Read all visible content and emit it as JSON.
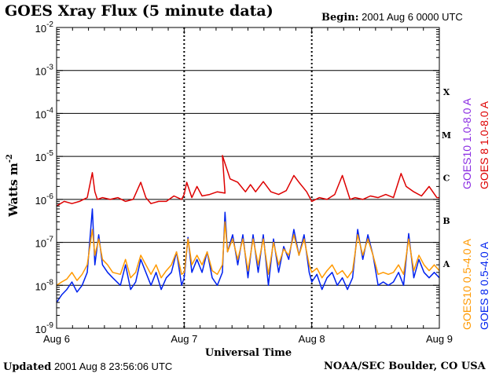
{
  "header": {
    "title": "GOES Xray Flux (5 minute data)",
    "begin_label": "Begin:",
    "begin_value": "2001 Aug 6 0000 UTC"
  },
  "footer": {
    "updated_label": "Updated",
    "updated_value": "2001 Aug  8 23:56:06 UTC",
    "credit": "NOAA/SEC Boulder, CO USA"
  },
  "chart_data": {
    "type": "line",
    "title": "GOES Xray Flux (5 minute data)",
    "xlabel": "Universal Time",
    "ylabel": "Watts m",
    "ylabel_superscript": "-2",
    "x_tick_labels": [
      "Aug 6",
      "Aug 7",
      "Aug 8",
      "Aug 9"
    ],
    "xlim_days": [
      0,
      3
    ],
    "y_scale": "log",
    "ylim": [
      1e-09,
      0.01
    ],
    "y_ticks": [
      {
        "base": "10",
        "exp": "-9"
      },
      {
        "base": "10",
        "exp": "-8"
      },
      {
        "base": "10",
        "exp": "-7"
      },
      {
        "base": "10",
        "exp": "-6"
      },
      {
        "base": "10",
        "exp": "-5"
      },
      {
        "base": "10",
        "exp": "-4"
      },
      {
        "base": "10",
        "exp": "-3"
      },
      {
        "base": "10",
        "exp": "-2"
      }
    ],
    "flare_classes": [
      {
        "label": "A",
        "value": 1e-08
      },
      {
        "label": "B",
        "value": 1e-07
      },
      {
        "label": "C",
        "value": 1e-06
      },
      {
        "label": "M",
        "value": 1e-05
      },
      {
        "label": "X",
        "value": 0.0001
      }
    ],
    "grid": "horizontal lines at each decade from 1e-8 to 1e-3; dashed vertical lines at day boundaries",
    "series": [
      {
        "name": "GOES 8 1.0-8.0 A",
        "color": "#dd0000",
        "band": "long",
        "x": [
          0.0,
          0.06,
          0.12,
          0.18,
          0.24,
          0.28,
          0.3,
          0.32,
          0.36,
          0.42,
          0.48,
          0.54,
          0.6,
          0.66,
          0.7,
          0.74,
          0.8,
          0.86,
          0.92,
          0.98,
          1.0,
          1.02,
          1.06,
          1.1,
          1.14,
          1.2,
          1.26,
          1.32,
          1.3,
          1.36,
          1.42,
          1.48,
          1.52,
          1.56,
          1.62,
          1.68,
          1.74,
          1.8,
          1.86,
          1.9,
          1.96,
          2.0,
          2.06,
          2.12,
          2.18,
          2.24,
          2.3,
          2.34,
          2.4,
          2.46,
          2.52,
          2.58,
          2.64,
          2.7,
          2.74,
          2.8,
          2.86,
          2.92,
          2.98,
          3.0
        ],
        "y": [
          7e-07,
          9e-07,
          8e-07,
          9e-07,
          1.1e-06,
          4.2e-06,
          1.5e-06,
          1e-06,
          1.1e-06,
          1e-06,
          1.1e-06,
          9e-07,
          1e-06,
          2.5e-06,
          1.1e-06,
          8e-07,
          9e-07,
          9e-07,
          1.2e-06,
          1e-06,
          1.3e-06,
          2.5e-06,
          1.1e-06,
          2e-06,
          1.2e-06,
          1.3e-06,
          1.5e-06,
          1.4e-06,
          1.05e-05,
          3e-06,
          2.5e-06,
          1.5e-06,
          2.2e-06,
          1.5e-06,
          2.6e-06,
          1.5e-06,
          1.3e-06,
          1.6e-06,
          3.6e-06,
          2.5e-06,
          1.5e-06,
          9e-07,
          1.1e-06,
          1e-06,
          1.3e-06,
          3.6e-06,
          1e-06,
          1.1e-06,
          1e-06,
          1.2e-06,
          1.1e-06,
          1.3e-06,
          1.1e-06,
          4e-06,
          2e-06,
          1.5e-06,
          1.2e-06,
          2e-06,
          1.1e-06,
          1.1e-06
        ]
      },
      {
        "name": "GOES10 1.0-8.0 A",
        "color": "#8a2be2",
        "band": "long",
        "x": [],
        "y": []
      },
      {
        "name": "GOES 8 0.5-4.0 A",
        "color": "#0022ee",
        "band": "short",
        "x": [
          0.0,
          0.04,
          0.08,
          0.12,
          0.16,
          0.2,
          0.24,
          0.28,
          0.3,
          0.33,
          0.36,
          0.4,
          0.44,
          0.5,
          0.54,
          0.58,
          0.62,
          0.66,
          0.7,
          0.74,
          0.78,
          0.82,
          0.86,
          0.9,
          0.94,
          0.98,
          1.0,
          1.03,
          1.06,
          1.1,
          1.14,
          1.18,
          1.22,
          1.26,
          1.3,
          1.32,
          1.34,
          1.38,
          1.42,
          1.46,
          1.5,
          1.54,
          1.58,
          1.62,
          1.66,
          1.7,
          1.74,
          1.78,
          1.82,
          1.86,
          1.9,
          1.94,
          1.98,
          2.0,
          2.04,
          2.08,
          2.12,
          2.16,
          2.2,
          2.24,
          2.28,
          2.32,
          2.36,
          2.4,
          2.44,
          2.48,
          2.52,
          2.56,
          2.6,
          2.64,
          2.68,
          2.72,
          2.76,
          2.8,
          2.84,
          2.88,
          2.92,
          2.96,
          3.0
        ],
        "y": [
          4e-09,
          6e-09,
          8e-09,
          1.2e-08,
          7e-09,
          1e-08,
          2e-08,
          6e-07,
          3e-08,
          1.5e-07,
          3e-08,
          2e-08,
          1.5e-08,
          1e-08,
          3e-08,
          8e-09,
          1.2e-08,
          4e-08,
          2e-08,
          1e-08,
          2e-08,
          8e-09,
          1.5e-08,
          2e-08,
          6e-08,
          1e-08,
          1.5e-08,
          1.3e-07,
          2e-08,
          4e-08,
          2e-08,
          6e-08,
          1.5e-08,
          1e-08,
          2e-08,
          5e-07,
          6e-08,
          1.5e-07,
          3e-08,
          1.5e-07,
          1.5e-08,
          1.5e-07,
          2e-08,
          1.5e-07,
          1e-08,
          1.2e-07,
          2e-08,
          8e-08,
          4e-08,
          2e-07,
          5e-08,
          1.5e-07,
          2e-08,
          1.2e-08,
          1.8e-08,
          8e-09,
          1.5e-08,
          2e-08,
          1e-08,
          1.5e-08,
          8e-09,
          1.5e-08,
          2e-07,
          4e-08,
          1.5e-07,
          5e-08,
          1e-08,
          1.2e-08,
          1e-08,
          1.2e-08,
          2e-08,
          1e-08,
          1.6e-07,
          1.5e-08,
          4e-08,
          2e-08,
          1.5e-08,
          2e-08,
          1.5e-08
        ]
      },
      {
        "name": "GOES10 0.5-4.0 A",
        "color": "#ff9900",
        "band": "short",
        "x": [
          0.0,
          0.04,
          0.08,
          0.12,
          0.16,
          0.2,
          0.24,
          0.28,
          0.3,
          0.33,
          0.36,
          0.4,
          0.44,
          0.5,
          0.54,
          0.58,
          0.62,
          0.66,
          0.7,
          0.74,
          0.78,
          0.82,
          0.86,
          0.9,
          0.94,
          0.98,
          1.0,
          1.03,
          1.06,
          1.1,
          1.14,
          1.18,
          1.22,
          1.26,
          1.3,
          1.32,
          1.34,
          1.38,
          1.42,
          1.46,
          1.5,
          1.54,
          1.58,
          1.62,
          1.66,
          1.7,
          1.74,
          1.78,
          1.82,
          1.86,
          1.9,
          1.94,
          1.98,
          2.0,
          2.04,
          2.08,
          2.12,
          2.16,
          2.2,
          2.24,
          2.28,
          2.32,
          2.36,
          2.4,
          2.44,
          2.48,
          2.52,
          2.56,
          2.6,
          2.64,
          2.68,
          2.72,
          2.76,
          2.8,
          2.84,
          2.88,
          2.92,
          2.96,
          3.0
        ],
        "y": [
          1e-08,
          1.2e-08,
          1.4e-08,
          2e-08,
          1.3e-08,
          1.8e-08,
          3e-08,
          2e-07,
          5e-08,
          1.2e-07,
          4e-08,
          3e-08,
          2e-08,
          1.8e-08,
          4e-08,
          1.5e-08,
          2e-08,
          5e-08,
          3e-08,
          1.8e-08,
          3e-08,
          1.5e-08,
          2.2e-08,
          3e-08,
          6e-08,
          1.8e-08,
          2e-08,
          1.2e-07,
          3e-08,
          5e-08,
          3e-08,
          6e-08,
          2.2e-08,
          1.8e-08,
          3e-08,
          3e-07,
          6e-08,
          1.2e-07,
          4e-08,
          1.2e-07,
          2.2e-08,
          1.2e-07,
          3e-08,
          1.2e-07,
          1.8e-08,
          1e-07,
          3e-08,
          7e-08,
          5e-08,
          1.5e-07,
          5e-08,
          1.2e-07,
          3e-08,
          2e-08,
          2.5e-08,
          1.5e-08,
          2.2e-08,
          3e-08,
          1.8e-08,
          2.2e-08,
          1.5e-08,
          2.2e-08,
          1.5e-07,
          5e-08,
          1.2e-07,
          5e-08,
          1.8e-08,
          2e-08,
          1.8e-08,
          2e-08,
          3e-08,
          1.8e-08,
          1.2e-07,
          2.2e-08,
          5e-08,
          3e-08,
          2.2e-08,
          3e-08,
          2.2e-08
        ]
      }
    ]
  }
}
